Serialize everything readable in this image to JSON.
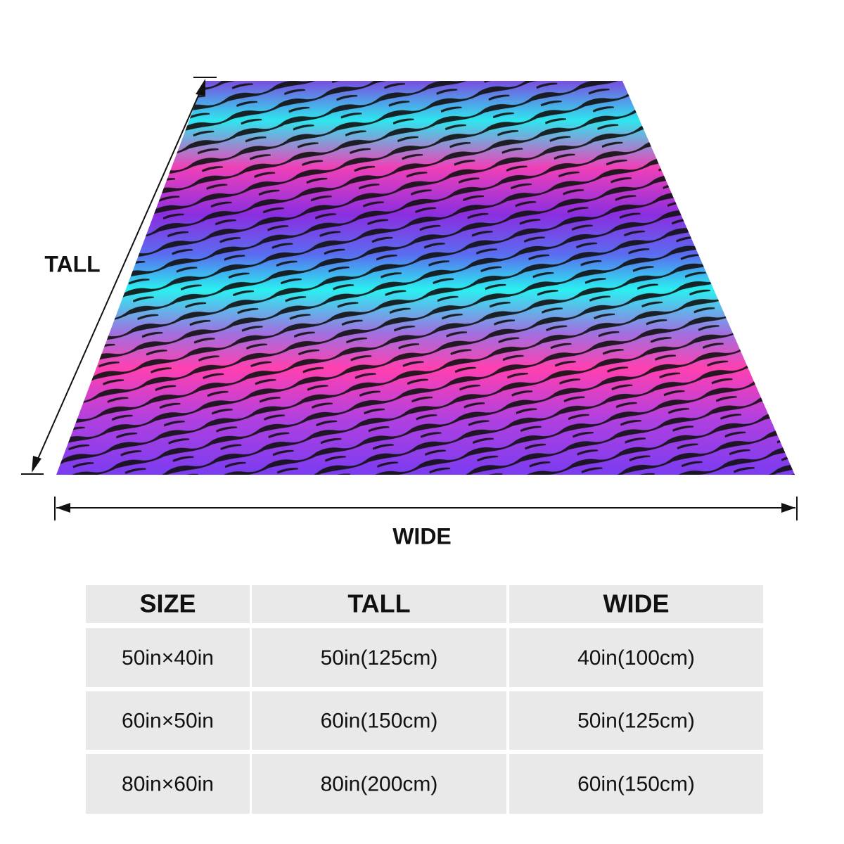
{
  "diagram": {
    "tall_label": "TALL",
    "wide_label": "WIDE"
  },
  "table": {
    "header": [
      "SIZE",
      "TALL",
      "WIDE"
    ],
    "rows": [
      [
        "50in×40in",
        "50in(125cm)",
        "40in(100cm)"
      ],
      [
        "60in×50in",
        "60in(150cm)",
        "50in(125cm)"
      ],
      [
        "80in×60in",
        "80in(200cm)",
        "60in(150cm)"
      ]
    ]
  }
}
